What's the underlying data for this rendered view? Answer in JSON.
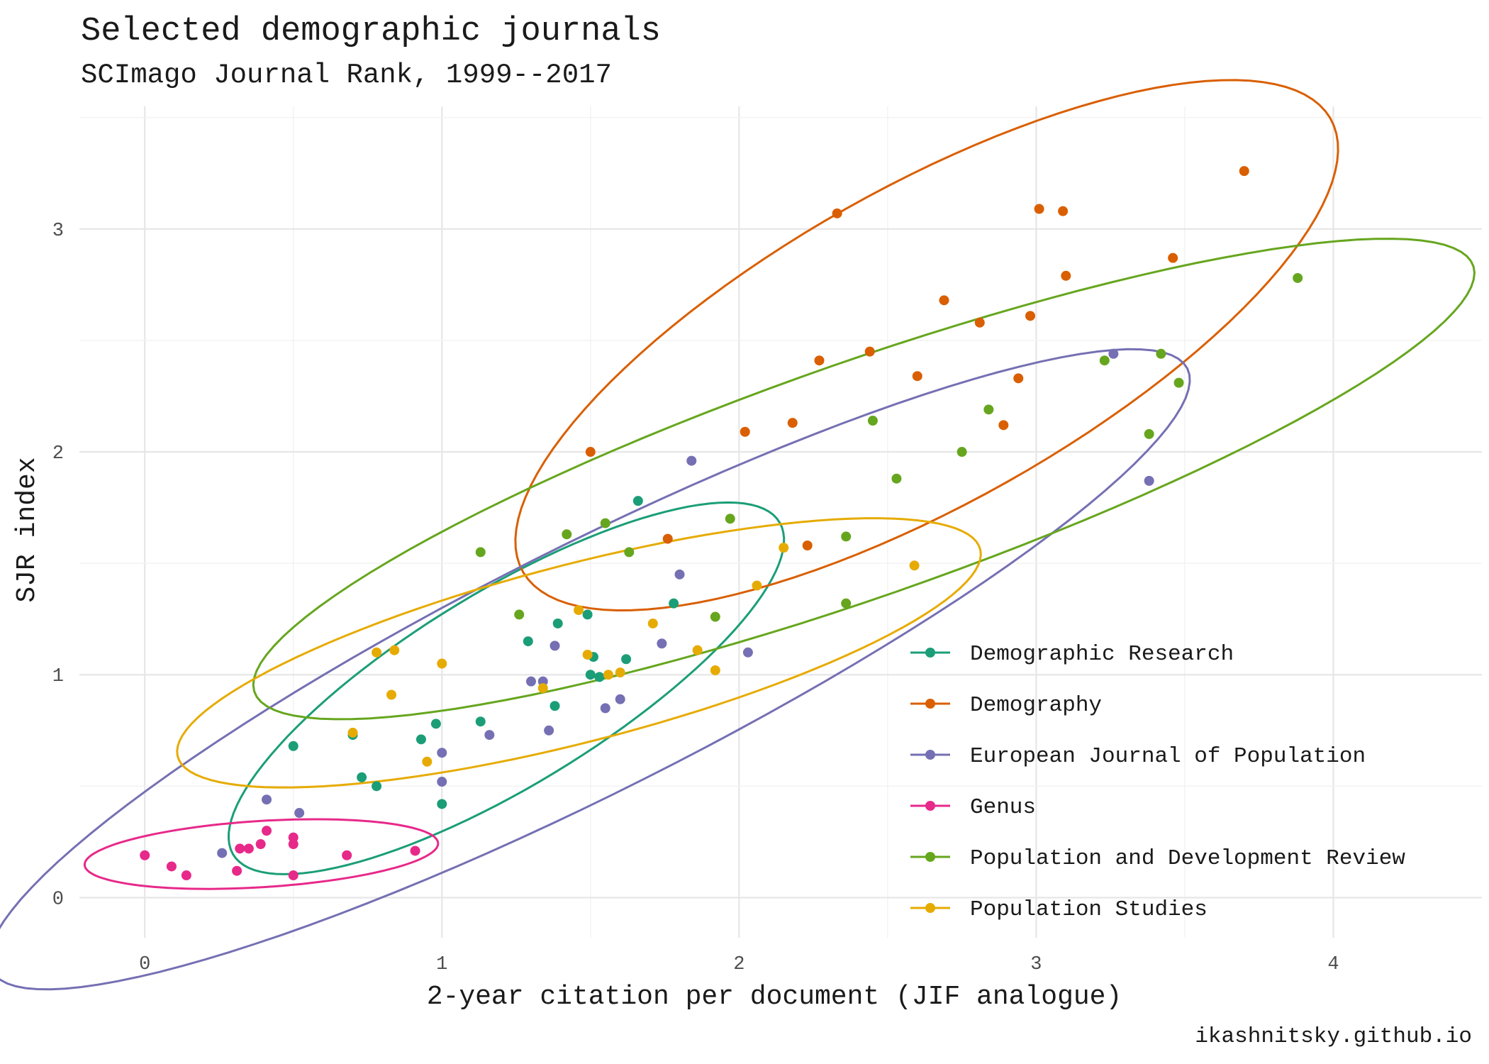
{
  "chart_data": {
    "type": "scatter",
    "title": "Selected demographic journals",
    "subtitle": "SCImago Journal Rank, 1999--2017",
    "xlabel": "2-year citation per document (JIF analogue)",
    "ylabel": "SJR index",
    "caption": "ikashnitsky.github.io",
    "xlim": [
      -0.22,
      4.5
    ],
    "ylim": [
      -0.18,
      3.55
    ],
    "x_ticks": [
      0,
      1,
      2,
      3,
      4
    ],
    "y_ticks": [
      0,
      1,
      2,
      3
    ],
    "grid": true,
    "legend_position": "bottom-right",
    "overlays": "95% confidence ellipse per series",
    "series": [
      {
        "name": "Demographic Research",
        "color": "#1b9e77",
        "x": [
          0.5,
          0.7,
          0.73,
          0.78,
          0.93,
          0.98,
          1.0,
          1.13,
          1.29,
          1.39,
          1.38,
          1.49,
          1.5,
          1.51,
          1.53,
          1.62,
          1.66,
          1.78
        ],
        "y": [
          0.68,
          0.73,
          0.54,
          0.5,
          0.71,
          0.78,
          0.42,
          0.79,
          1.15,
          1.23,
          0.86,
          1.27,
          1.0,
          1.08,
          0.99,
          1.07,
          1.78,
          1.32
        ]
      },
      {
        "name": "Demography",
        "color": "#d95f02",
        "x": [
          1.5,
          1.76,
          2.02,
          2.18,
          2.23,
          2.27,
          2.33,
          2.44,
          2.6,
          2.69,
          2.81,
          2.89,
          2.94,
          2.98,
          3.01,
          3.09,
          3.1,
          3.46,
          3.7
        ],
        "y": [
          2.0,
          1.61,
          2.09,
          2.13,
          1.58,
          2.41,
          3.07,
          2.45,
          2.34,
          2.68,
          2.58,
          2.12,
          2.33,
          2.61,
          3.09,
          3.08,
          2.79,
          2.87,
          3.26
        ]
      },
      {
        "name": "European Journal of Population",
        "color": "#7570b3",
        "x": [
          0.26,
          0.41,
          0.52,
          1.0,
          1.0,
          1.16,
          1.3,
          1.34,
          1.36,
          1.38,
          1.55,
          1.6,
          1.74,
          1.8,
          1.84,
          2.03,
          3.26,
          3.38
        ],
        "y": [
          0.2,
          0.44,
          0.38,
          0.65,
          0.52,
          0.73,
          0.97,
          0.97,
          0.75,
          1.13,
          0.85,
          0.89,
          1.14,
          1.45,
          1.96,
          1.1,
          2.44,
          1.87
        ]
      },
      {
        "name": "Genus",
        "color": "#e7298a",
        "x": [
          0.0,
          0.09,
          0.14,
          0.31,
          0.32,
          0.35,
          0.39,
          0.41,
          0.5,
          0.5,
          0.5,
          0.68,
          0.91
        ],
        "y": [
          0.19,
          0.14,
          0.1,
          0.12,
          0.22,
          0.22,
          0.24,
          0.3,
          0.27,
          0.24,
          0.1,
          0.19,
          0.21
        ]
      },
      {
        "name": "Population and Development Review",
        "color": "#66a61e",
        "x": [
          1.13,
          1.26,
          1.42,
          1.55,
          1.63,
          1.92,
          1.97,
          2.36,
          2.36,
          2.45,
          2.53,
          2.75,
          2.84,
          3.23,
          3.38,
          3.42,
          3.48,
          3.88
        ],
        "y": [
          1.55,
          1.27,
          1.63,
          1.68,
          1.55,
          1.26,
          1.7,
          1.62,
          1.32,
          2.14,
          1.88,
          2.0,
          2.19,
          2.41,
          2.08,
          2.44,
          2.31,
          2.78
        ]
      },
      {
        "name": "Population Studies",
        "color": "#e6ab02",
        "x": [
          0.7,
          0.78,
          0.83,
          0.84,
          0.95,
          1.0,
          1.34,
          1.46,
          1.49,
          1.56,
          1.6,
          1.71,
          1.86,
          1.92,
          2.06,
          2.15,
          2.59
        ],
        "y": [
          0.74,
          1.1,
          0.91,
          1.11,
          0.61,
          1.05,
          0.94,
          1.29,
          1.09,
          1.0,
          1.01,
          1.23,
          1.11,
          1.02,
          1.4,
          1.57,
          1.49
        ]
      }
    ]
  }
}
